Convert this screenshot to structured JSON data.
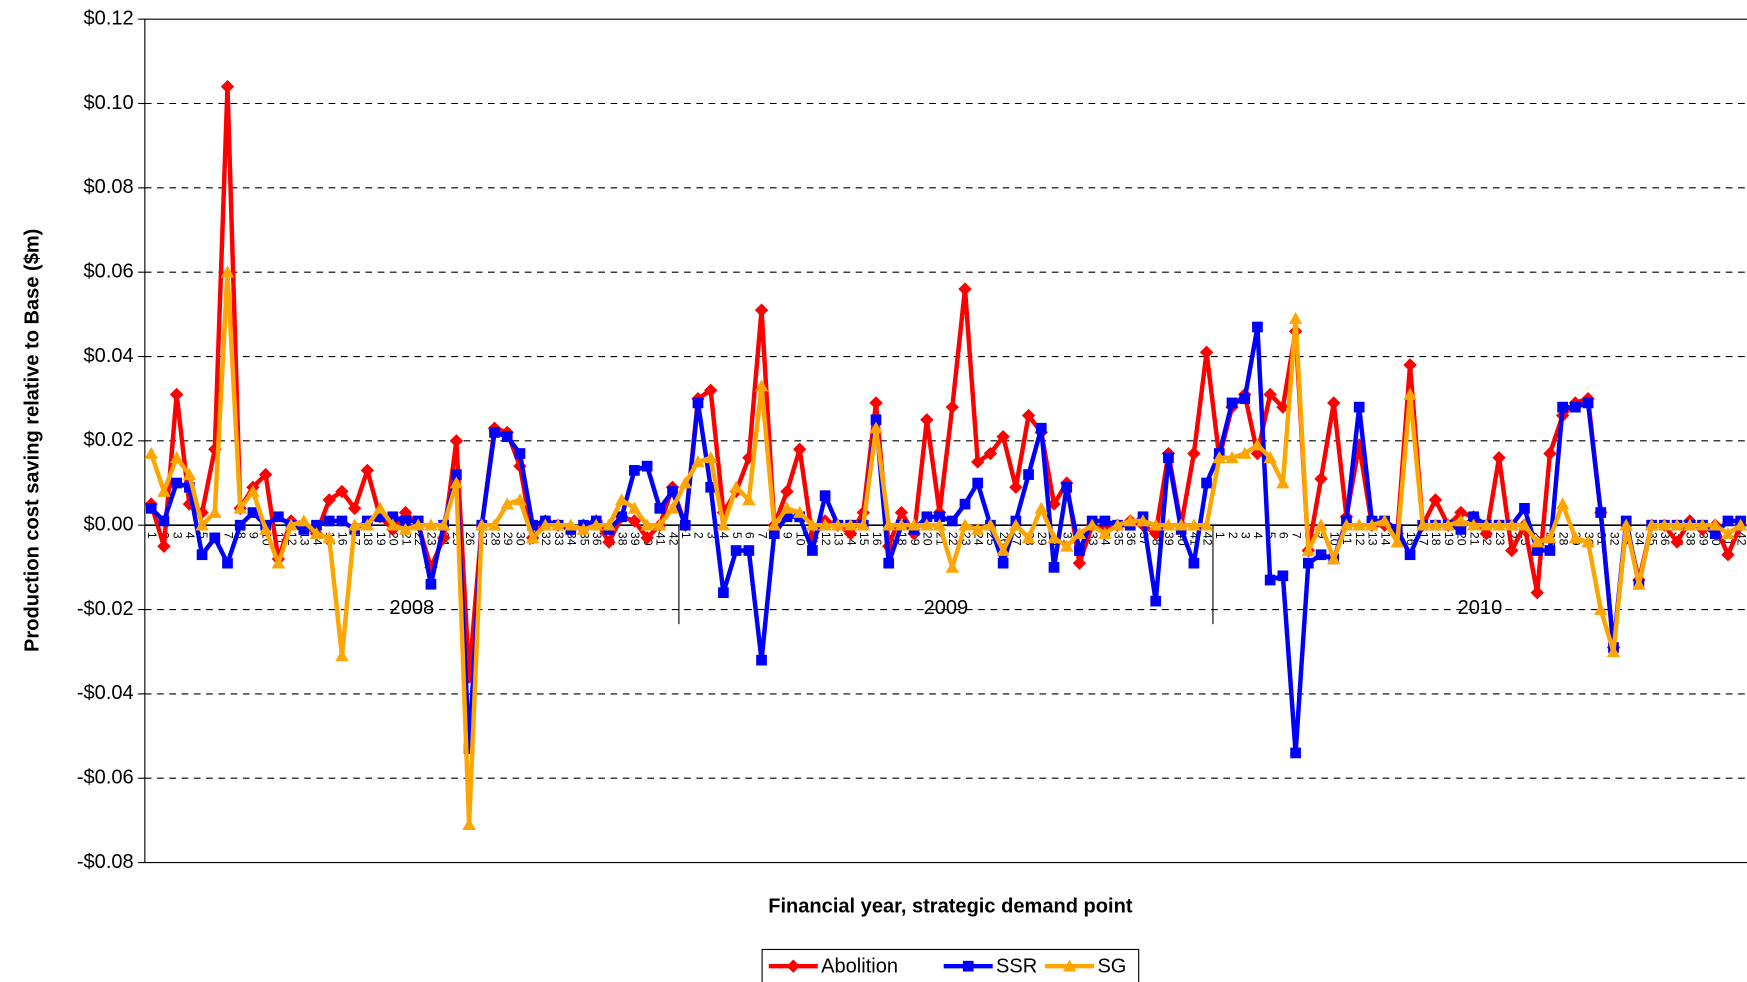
{
  "chart_data": {
    "type": "line",
    "x_title": "Financial year, strategic demand point",
    "y_title": "Production cost saving relative to Base ($m)",
    "groups": [
      "2008",
      "2009",
      "2010"
    ],
    "categories": [
      "1",
      "2",
      "3",
      "4",
      "5",
      "6",
      "7",
      "8",
      "9",
      "10",
      "11",
      "12",
      "13",
      "14",
      "15",
      "16",
      "17",
      "18",
      "19",
      "20",
      "21",
      "22",
      "23",
      "24",
      "25",
      "26",
      "27",
      "28",
      "29",
      "30",
      "31",
      "32",
      "33",
      "34",
      "35",
      "36",
      "37",
      "38",
      "39",
      "40",
      "41",
      "42",
      "1",
      "2",
      "3",
      "4",
      "5",
      "6",
      "7",
      "8",
      "9",
      "10",
      "11",
      "12",
      "13",
      "14",
      "15",
      "16",
      "17",
      "18",
      "19",
      "20",
      "21",
      "22",
      "23",
      "24",
      "25",
      "26",
      "27",
      "28",
      "29",
      "30",
      "31",
      "32",
      "33",
      "34",
      "35",
      "36",
      "37",
      "38",
      "39",
      "40",
      "41",
      "42",
      "1",
      "2",
      "3",
      "4",
      "5",
      "6",
      "7",
      "8",
      "9",
      "10",
      "11",
      "12",
      "13",
      "14",
      "15",
      "16",
      "17",
      "18",
      "19",
      "20",
      "21",
      "22",
      "23",
      "24",
      "25",
      "26",
      "27",
      "28",
      "29",
      "30",
      "31",
      "32",
      "33",
      "34",
      "35",
      "36",
      "37",
      "38",
      "39",
      "40",
      "41",
      "42"
    ],
    "ylim": [
      -0.08,
      0.12
    ],
    "yticks": [
      {
        "value": -0.08,
        "label": "-$0.08"
      },
      {
        "value": -0.06,
        "label": "-$0.06"
      },
      {
        "value": -0.04,
        "label": "-$0.04"
      },
      {
        "value": -0.02,
        "label": "-$0.02"
      },
      {
        "value": 0,
        "label": "$0.00"
      },
      {
        "value": 0.02,
        "label": "$0.02"
      },
      {
        "value": 0.04,
        "label": "$0.04"
      },
      {
        "value": 0.06,
        "label": "$0.06"
      },
      {
        "value": 0.08,
        "label": "$0.08"
      },
      {
        "value": 0.1,
        "label": "$0.10"
      },
      {
        "value": 0.12,
        "label": "$0.12"
      }
    ],
    "negative_tick_color": "#ff0000",
    "grid": true,
    "legend": "bottom",
    "series": [
      {
        "name": "Abolition",
        "color": "#ff0000",
        "marker": "diamond",
        "values": [
          0.005,
          -0.005,
          0.031,
          0.005,
          0.003,
          0.018,
          0.104,
          0.004,
          0.009,
          0.012,
          -0.008,
          0.001,
          0,
          -0.002,
          0.006,
          0.008,
          0.004,
          0.013,
          0.002,
          -0.001,
          0.003,
          0,
          -0.01,
          -0.003,
          0.02,
          -0.036,
          0,
          0.023,
          0.022,
          0.014,
          -0.003,
          0.001,
          0,
          -0.001,
          0,
          0.001,
          -0.004,
          0.002,
          0.001,
          -0.003,
          0,
          0.009,
          0,
          0.03,
          0.032,
          0.003,
          0.008,
          0.016,
          0.051,
          0,
          0.008,
          0.018,
          -0.003,
          0.001,
          0,
          -0.002,
          0.003,
          0.029,
          -0.005,
          0.003,
          -0.002,
          0.025,
          0.003,
          0.028,
          0.056,
          0.015,
          0.017,
          0.021,
          0.009,
          0.026,
          0.022,
          0.005,
          0.01,
          -0.009,
          0,
          -0.001,
          0,
          0.001,
          0,
          -0.002,
          0.017,
          0,
          0.017,
          0.041,
          0.016,
          0.028,
          0.031,
          0.017,
          0.031,
          0.028,
          0.046,
          -0.006,
          0.011,
          0.029,
          0.002,
          0.019,
          0,
          0,
          -0.002,
          0.038,
          0,
          0.006,
          0,
          0.003,
          0.002,
          -0.002,
          0.016,
          -0.006,
          0,
          -0.016,
          0.017,
          0.026,
          0.029,
          0.03,
          0.003,
          -0.029,
          0,
          -0.013,
          0,
          0,
          -0.004,
          0.001,
          -0.001,
          0,
          -0.007,
          0
        ]
      },
      {
        "name": "SSR",
        "color": "#0000ff",
        "marker": "square",
        "values": [
          0.004,
          0.001,
          0.01,
          0.009,
          -0.007,
          -0.003,
          -0.009,
          0,
          0.003,
          0,
          0.002,
          0,
          -0.001,
          0,
          0.001,
          0.001,
          -0.001,
          0.001,
          0.002,
          0.002,
          0.001,
          0.001,
          -0.014,
          0,
          0.012,
          -0.053,
          0,
          0.022,
          0.021,
          0.017,
          0,
          0.001,
          0,
          -0.001,
          0,
          0.001,
          -0.001,
          0.002,
          0.013,
          0.014,
          0.004,
          0.008,
          0,
          0.029,
          0.009,
          -0.016,
          -0.006,
          -0.006,
          -0.032,
          -0.002,
          0.002,
          0.002,
          -0.006,
          0.007,
          0,
          0,
          0,
          0.025,
          -0.009,
          0,
          -0.001,
          0.002,
          0.002,
          0.001,
          0.005,
          0.01,
          0,
          -0.009,
          0.001,
          0.012,
          0.023,
          -0.01,
          0.009,
          -0.006,
          0.001,
          0.001,
          0,
          0,
          0.002,
          -0.018,
          0.016,
          -0.001,
          -0.009,
          0.01,
          0.017,
          0.029,
          0.03,
          0.047,
          -0.013,
          -0.012,
          -0.054,
          -0.009,
          -0.007,
          -0.008,
          0.001,
          0.028,
          0.001,
          0.001,
          -0.001,
          -0.007,
          0,
          0,
          0,
          -0.001,
          0.002,
          0,
          0,
          0,
          0.004,
          -0.006,
          -0.006,
          0.028,
          0.028,
          0.029,
          0.003,
          -0.029,
          0.001,
          -0.014,
          0,
          0,
          0,
          0,
          0,
          -0.002,
          0.001,
          0.001
        ]
      },
      {
        "name": "SG",
        "color": "#ffa500",
        "marker": "triangle",
        "values": [
          0.017,
          0.008,
          0.016,
          0.012,
          0,
          0.003,
          0.06,
          0.004,
          0.008,
          -0.001,
          -0.009,
          0,
          0.001,
          -0.002,
          -0.003,
          -0.031,
          0,
          0,
          0.004,
          0,
          -0.001,
          0,
          0,
          0,
          0.01,
          -0.071,
          0,
          0,
          0.005,
          0.006,
          -0.003,
          0,
          0,
          0,
          -0.001,
          0,
          0,
          0.006,
          0.004,
          0,
          0,
          0.004,
          0.01,
          0.015,
          0.016,
          0,
          0.009,
          0.006,
          0.033,
          0,
          0.004,
          0.003,
          0,
          0,
          0,
          0,
          0,
          0.023,
          0,
          0,
          0,
          0,
          0,
          -0.01,
          0,
          -0.001,
          0,
          -0.006,
          0,
          -0.003,
          0.004,
          -0.003,
          -0.005,
          -0.002,
          0,
          -0.002,
          0,
          0.001,
          0.001,
          0,
          0,
          0,
          0,
          0,
          0.016,
          0.016,
          0.017,
          0.019,
          0.016,
          0.01,
          0.049,
          -0.006,
          0,
          -0.008,
          0,
          0,
          0,
          0.001,
          -0.004,
          0.031,
          0,
          0,
          0,
          0.001,
          0,
          0,
          0,
          0,
          0,
          -0.004,
          -0.003,
          0.005,
          -0.003,
          -0.004,
          -0.02,
          -0.03,
          0,
          -0.014,
          0,
          0,
          0,
          0,
          0,
          0,
          -0.002,
          0
        ]
      }
    ]
  }
}
